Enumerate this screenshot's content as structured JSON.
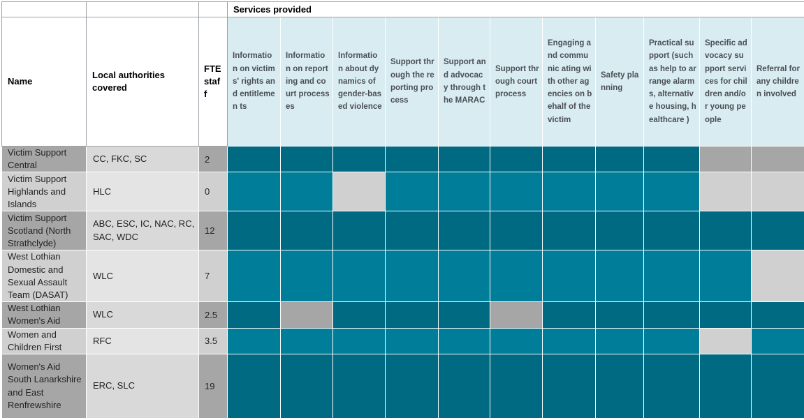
{
  "table": {
    "services_provided_title": "Services provided",
    "col_name": "Name",
    "col_local_authorities": "Local authorities covered",
    "col_fte": "FTE staf f",
    "services": [
      "Informatio n on victims' rights and entitlemen ts",
      "Informatio n on reporting and court processes",
      "Informatio n about dynamics of gender-based violence",
      "Support through the reporting process",
      "Support and advocacy through the MARAC",
      "Support through court process",
      "Engaging and communic ating with other agencies on behalf of the victim",
      "Safety planning",
      "Practical support (such as help to arrange alarms, alternative housing, healthcare )",
      "Specific advocacy support services for children and/or young people",
      "Referral for any children involved"
    ],
    "colors": {
      "provided_dark": "#006a82",
      "provided_light": "#007d99",
      "not_provided_dark": "#a6a6a6",
      "not_provided_light": "#d0d0d0",
      "header_bg": "#d9ecf1"
    },
    "rows": [
      {
        "name": "Victim Support Central",
        "local_authorities": "CC, FKC, SC",
        "fte": "2",
        "shade": "dark",
        "provided": [
          true,
          true,
          true,
          true,
          true,
          true,
          true,
          true,
          true,
          false,
          false
        ]
      },
      {
        "name": "Victim Support Highlands and Islands",
        "local_authorities": "HLC",
        "fte": "0",
        "shade": "light",
        "provided": [
          true,
          true,
          false,
          true,
          true,
          true,
          true,
          true,
          true,
          false,
          false
        ]
      },
      {
        "name": "Victim Support Scotland (North Strathclyde)",
        "local_authorities": "ABC, ESC, IC, NAC, RC, SAC, WDC",
        "fte": "12",
        "shade": "dark",
        "provided": [
          true,
          true,
          true,
          true,
          true,
          true,
          true,
          true,
          true,
          true,
          true
        ]
      },
      {
        "name": "West Lothian Domestic and Sexual Assault Team (DASAT)",
        "local_authorities": "WLC",
        "fte": "7",
        "shade": "light",
        "provided": [
          true,
          true,
          true,
          true,
          true,
          true,
          true,
          true,
          true,
          true,
          false
        ]
      },
      {
        "name": "West Lothian Women's Aid",
        "local_authorities": "WLC",
        "fte": "2.5",
        "shade": "dark",
        "provided": [
          true,
          false,
          true,
          true,
          true,
          false,
          true,
          true,
          true,
          true,
          true
        ]
      },
      {
        "name": "Women and Children First",
        "local_authorities": "RFC",
        "fte": "3.5",
        "shade": "light",
        "provided": [
          true,
          true,
          true,
          true,
          true,
          true,
          true,
          true,
          true,
          false,
          true
        ]
      },
      {
        "name": "Women's Aid South Lanarkshire and East Renfrewshire",
        "local_authorities": "ERC, SLC",
        "fte": "19",
        "shade": "dark",
        "provided": [
          true,
          true,
          true,
          true,
          true,
          true,
          true,
          true,
          true,
          true,
          true
        ]
      }
    ]
  }
}
